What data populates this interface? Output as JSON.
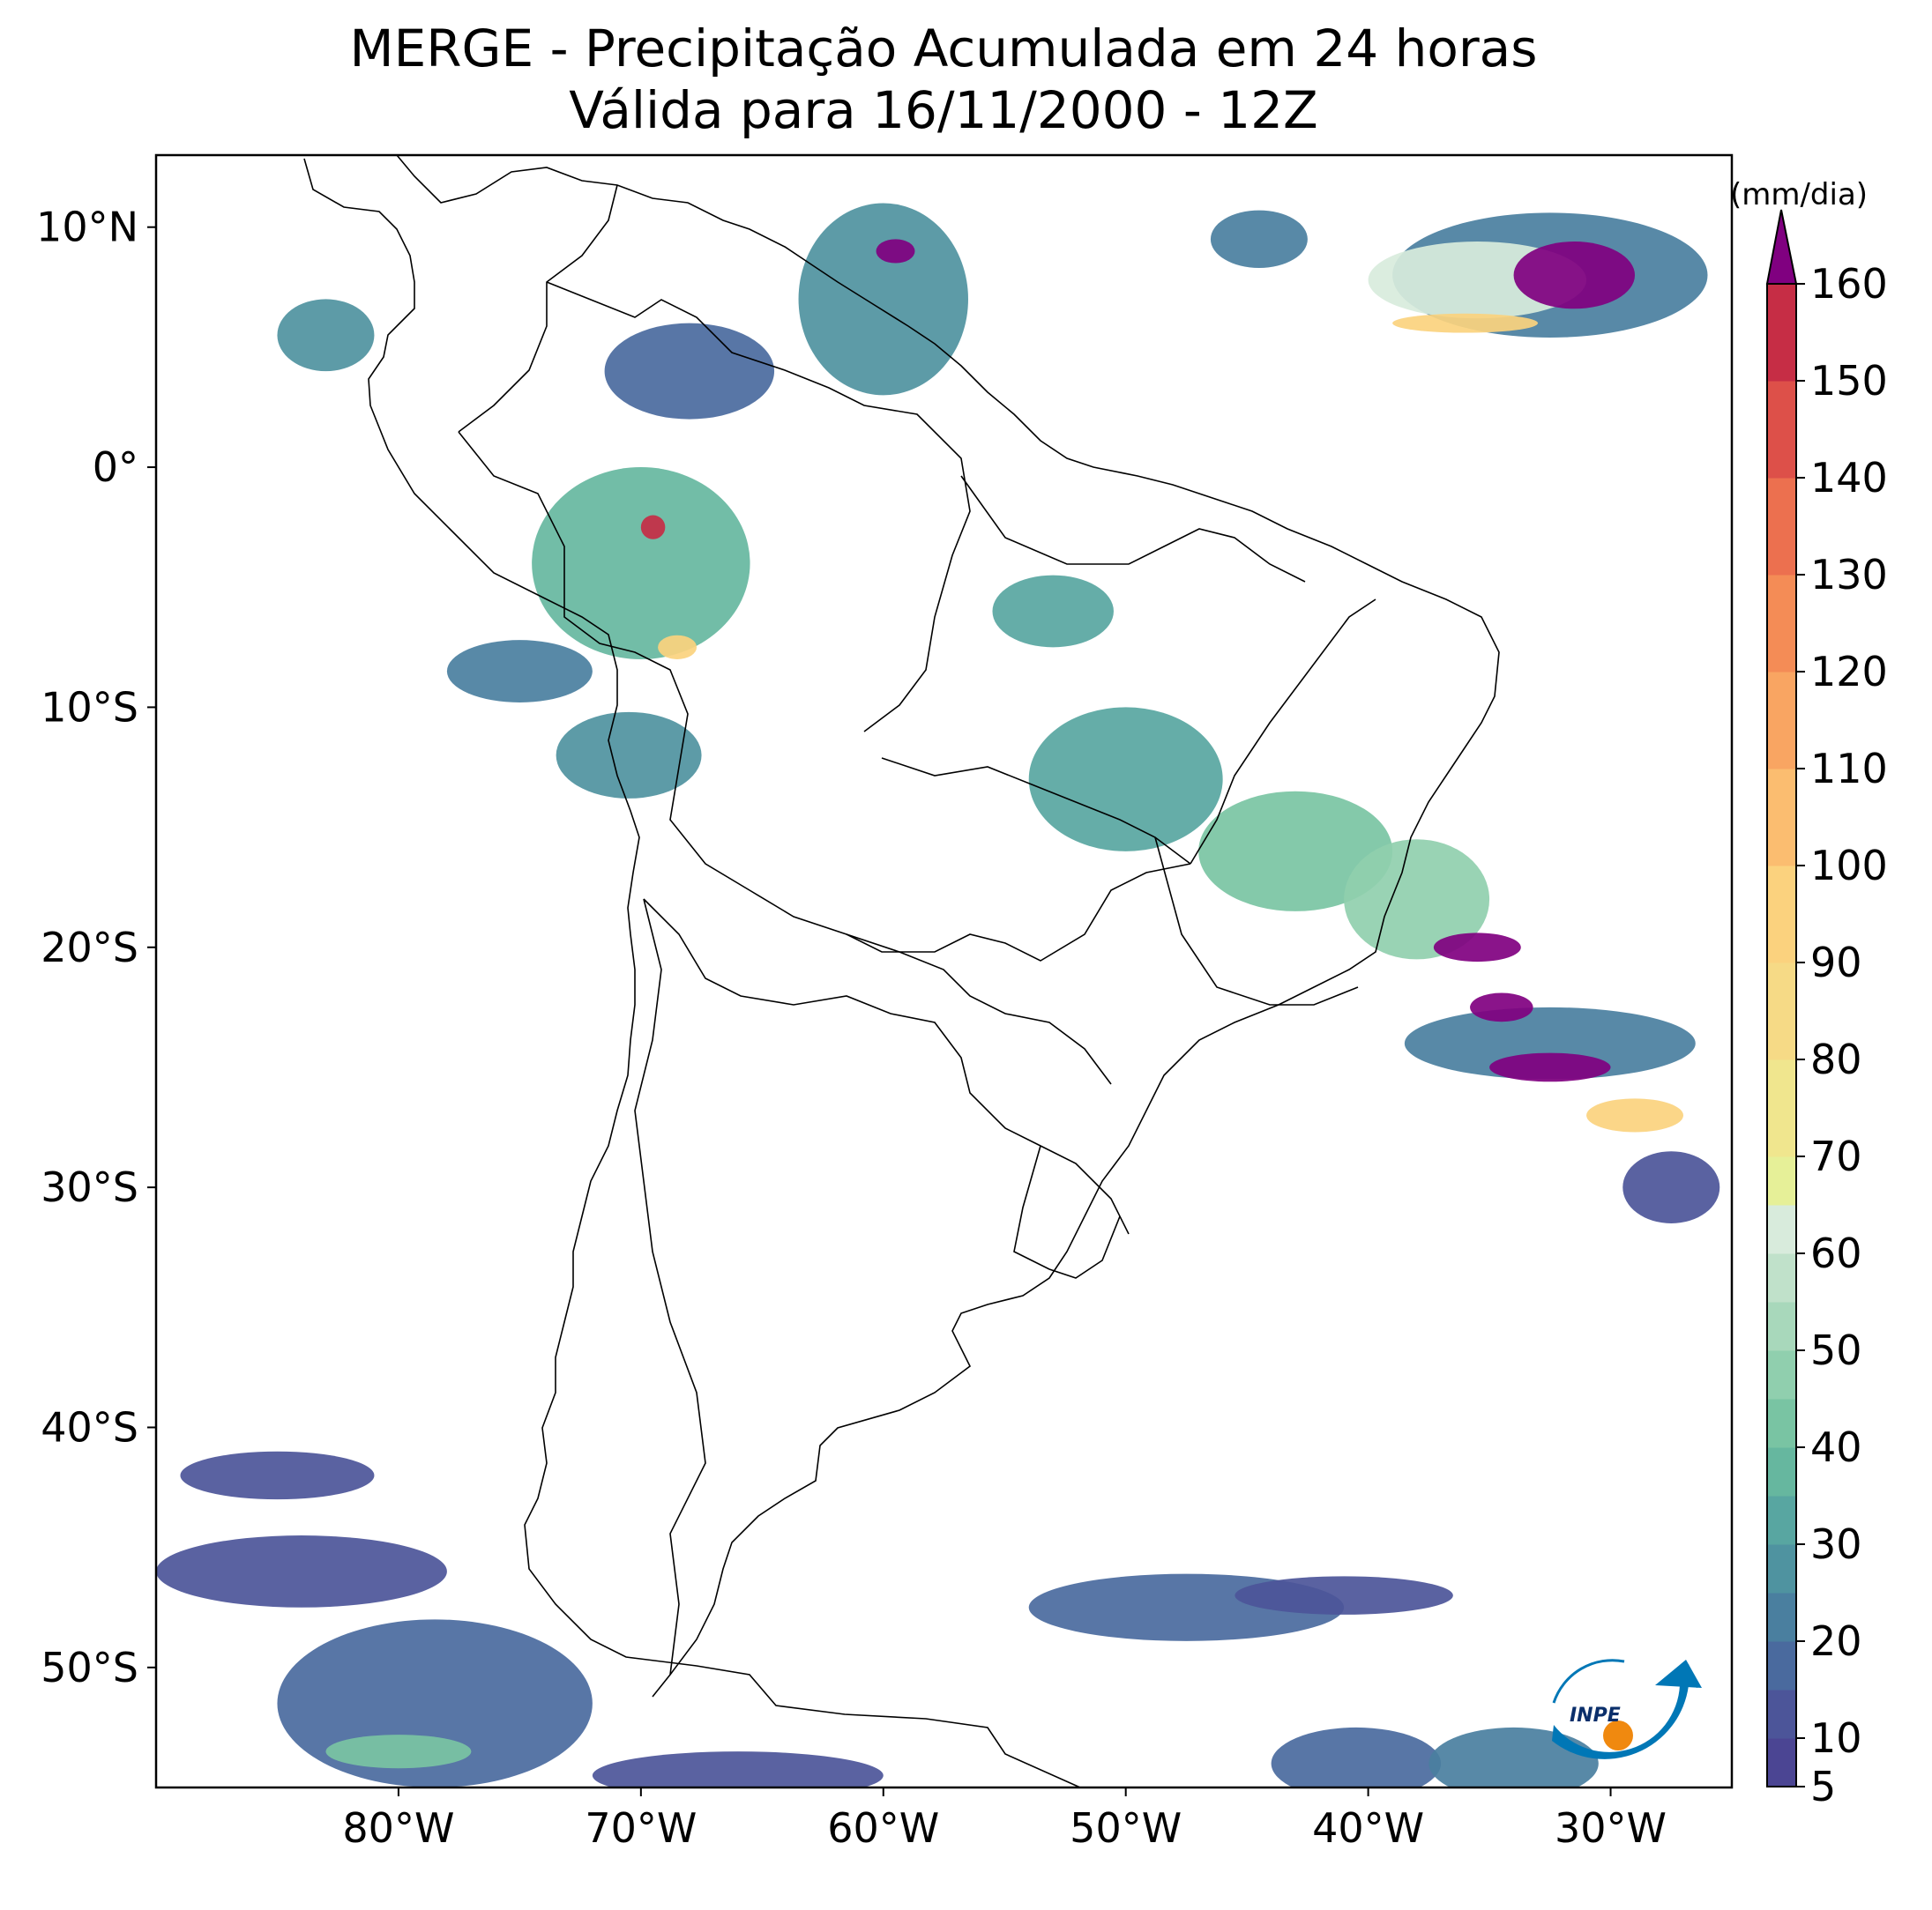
{
  "title": {
    "line1": "MERGE - Precipitação Acumulada em 24 horas",
    "line2": "Válida para 16/11/2000 - 12Z"
  },
  "map": {
    "lon_range": [
      -90,
      -25
    ],
    "lat_range": [
      -55,
      13
    ],
    "lat_ticks": [
      {
        "value": 10,
        "label": "10°N"
      },
      {
        "value": 0,
        "label": "0°"
      },
      {
        "value": -10,
        "label": "10°S"
      },
      {
        "value": -20,
        "label": "20°S"
      },
      {
        "value": -30,
        "label": "30°S"
      },
      {
        "value": -40,
        "label": "40°S"
      },
      {
        "value": -50,
        "label": "50°S"
      }
    ],
    "lon_ticks": [
      {
        "value": -80,
        "label": "80°W"
      },
      {
        "value": -70,
        "label": "70°W"
      },
      {
        "value": -60,
        "label": "60°W"
      },
      {
        "value": -50,
        "label": "50°W"
      },
      {
        "value": -40,
        "label": "40°W"
      },
      {
        "value": -30,
        "label": "30°W"
      }
    ],
    "precip_features": [
      {
        "lon": -32.5,
        "lat": 8.0,
        "rx": 6.5,
        "ry": 2.6,
        "value": 20
      },
      {
        "lon": -35.5,
        "lat": 7.8,
        "rx": 4.5,
        "ry": 1.6,
        "value": 60
      },
      {
        "lon": -31.5,
        "lat": 8.0,
        "rx": 2.5,
        "ry": 1.4,
        "value": 165
      },
      {
        "lon": -36.0,
        "lat": 6.0,
        "rx": 3.0,
        "ry": 0.4,
        "value": 95
      },
      {
        "lon": -44.5,
        "lat": 9.5,
        "rx": 2.0,
        "ry": 1.2,
        "value": 20
      },
      {
        "lon": -60.0,
        "lat": 7.0,
        "rx": 3.5,
        "ry": 4.0,
        "value": 25
      },
      {
        "lon": -59.5,
        "lat": 9.0,
        "rx": 0.8,
        "ry": 0.5,
        "value": 165
      },
      {
        "lon": -68.0,
        "lat": 4.0,
        "rx": 3.5,
        "ry": 2.0,
        "value": 18
      },
      {
        "lon": -83.0,
        "lat": 5.5,
        "rx": 2.0,
        "ry": 1.5,
        "value": 25
      },
      {
        "lon": -70.0,
        "lat": -4.0,
        "rx": 4.5,
        "ry": 4.0,
        "value": 35
      },
      {
        "lon": -69.5,
        "lat": -2.5,
        "rx": 0.5,
        "ry": 0.5,
        "value": 150
      },
      {
        "lon": -68.5,
        "lat": -7.5,
        "rx": 0.8,
        "ry": 0.5,
        "value": 95
      },
      {
        "lon": -75.0,
        "lat": -8.5,
        "rx": 3.0,
        "ry": 1.3,
        "value": 22
      },
      {
        "lon": -70.5,
        "lat": -12.0,
        "rx": 3.0,
        "ry": 1.8,
        "value": 25
      },
      {
        "lon": -53.0,
        "lat": -6.0,
        "rx": 2.5,
        "ry": 1.5,
        "value": 30
      },
      {
        "lon": -50.0,
        "lat": -13.0,
        "rx": 4.0,
        "ry": 3.0,
        "value": 30
      },
      {
        "lon": -43.0,
        "lat": -16.0,
        "rx": 4.0,
        "ry": 2.5,
        "value": 40
      },
      {
        "lon": -38.0,
        "lat": -18.0,
        "rx": 3.0,
        "ry": 2.5,
        "value": 45
      },
      {
        "lon": -32.5,
        "lat": -24.0,
        "rx": 6.0,
        "ry": 1.5,
        "value": 20
      },
      {
        "lon": -35.5,
        "lat": -20.0,
        "rx": 1.8,
        "ry": 0.6,
        "value": 165
      },
      {
        "lon": -34.5,
        "lat": -22.5,
        "rx": 1.3,
        "ry": 0.6,
        "value": 165
      },
      {
        "lon": -32.5,
        "lat": -25.0,
        "rx": 2.5,
        "ry": 0.6,
        "value": 165
      },
      {
        "lon": -29.0,
        "lat": -27.0,
        "rx": 2.0,
        "ry": 0.7,
        "value": 95
      },
      {
        "lon": -27.5,
        "lat": -30.0,
        "rx": 2.0,
        "ry": 1.5,
        "value": 12
      },
      {
        "lon": -84.0,
        "lat": -46.0,
        "rx": 6.0,
        "ry": 1.5,
        "value": 12
      },
      {
        "lon": -85.0,
        "lat": -42.0,
        "rx": 4.0,
        "ry": 1.0,
        "value": 10
      },
      {
        "lon": -78.5,
        "lat": -51.5,
        "rx": 6.5,
        "ry": 3.5,
        "value": 15
      },
      {
        "lon": -80.0,
        "lat": -53.5,
        "rx": 3.0,
        "ry": 0.7,
        "value": 40
      },
      {
        "lon": -66.0,
        "lat": -54.5,
        "rx": 6.0,
        "ry": 1.0,
        "value": 12
      },
      {
        "lon": -47.5,
        "lat": -47.5,
        "rx": 6.5,
        "ry": 1.4,
        "value": 15
      },
      {
        "lon": -41.0,
        "lat": -47.0,
        "rx": 4.5,
        "ry": 0.8,
        "value": 10
      },
      {
        "lon": -40.5,
        "lat": -54.0,
        "rx": 3.5,
        "ry": 1.5,
        "value": 15
      },
      {
        "lon": -34.0,
        "lat": -54.0,
        "rx": 3.5,
        "ry": 1.5,
        "value": 20
      }
    ]
  },
  "colorbar": {
    "unit_label": "(mm/dia)",
    "min": 5,
    "max": 160,
    "ticks": [
      {
        "value": 5,
        "label": "5"
      },
      {
        "value": 10,
        "label": "10"
      },
      {
        "value": 20,
        "label": "20"
      },
      {
        "value": 30,
        "label": "30"
      },
      {
        "value": 40,
        "label": "40"
      },
      {
        "value": 50,
        "label": "50"
      },
      {
        "value": 60,
        "label": "60"
      },
      {
        "value": 70,
        "label": "70"
      },
      {
        "value": 80,
        "label": "80"
      },
      {
        "value": 90,
        "label": "90"
      },
      {
        "value": 100,
        "label": "100"
      },
      {
        "value": 110,
        "label": "110"
      },
      {
        "value": 120,
        "label": "120"
      },
      {
        "value": 130,
        "label": "130"
      },
      {
        "value": 140,
        "label": "140"
      },
      {
        "value": 150,
        "label": "150"
      },
      {
        "value": 160,
        "label": "160"
      }
    ],
    "bins": [
      {
        "from": 5,
        "to": 10,
        "color": "#4b4593"
      },
      {
        "from": 10,
        "to": 15,
        "color": "#4c5599"
      },
      {
        "from": 15,
        "to": 20,
        "color": "#4a6a9e"
      },
      {
        "from": 20,
        "to": 25,
        "color": "#4a7f9f"
      },
      {
        "from": 25,
        "to": 30,
        "color": "#4f93a0"
      },
      {
        "from": 30,
        "to": 35,
        "color": "#58a6a1"
      },
      {
        "from": 35,
        "to": 40,
        "color": "#66b79f"
      },
      {
        "from": 40,
        "to": 45,
        "color": "#79c4a3"
      },
      {
        "from": 45,
        "to": 50,
        "color": "#90cfae"
      },
      {
        "from": 50,
        "to": 55,
        "color": "#a8d8bb"
      },
      {
        "from": 55,
        "to": 60,
        "color": "#c0e1ca"
      },
      {
        "from": 60,
        "to": 65,
        "color": "#d8ebdc"
      },
      {
        "from": 65,
        "to": 70,
        "color": "#e6f098"
      },
      {
        "from": 70,
        "to": 80,
        "color": "#f0e68e"
      },
      {
        "from": 80,
        "to": 90,
        "color": "#f6da86"
      },
      {
        "from": 90,
        "to": 100,
        "color": "#fbd27e"
      },
      {
        "from": 100,
        "to": 110,
        "color": "#fbbd70"
      },
      {
        "from": 110,
        "to": 120,
        "color": "#f9a562"
      },
      {
        "from": 120,
        "to": 130,
        "color": "#f48c56"
      },
      {
        "from": 130,
        "to": 140,
        "color": "#ec704f"
      },
      {
        "from": 140,
        "to": 150,
        "color": "#dd5049"
      },
      {
        "from": 150,
        "to": 160,
        "color": "#c62d45"
      }
    ],
    "extend_color": "#800080"
  },
  "logo": {
    "text": "INPE",
    "colors": {
      "arrow": "#0077b6",
      "sun": "#f0890f",
      "line": "#0077b6"
    }
  }
}
